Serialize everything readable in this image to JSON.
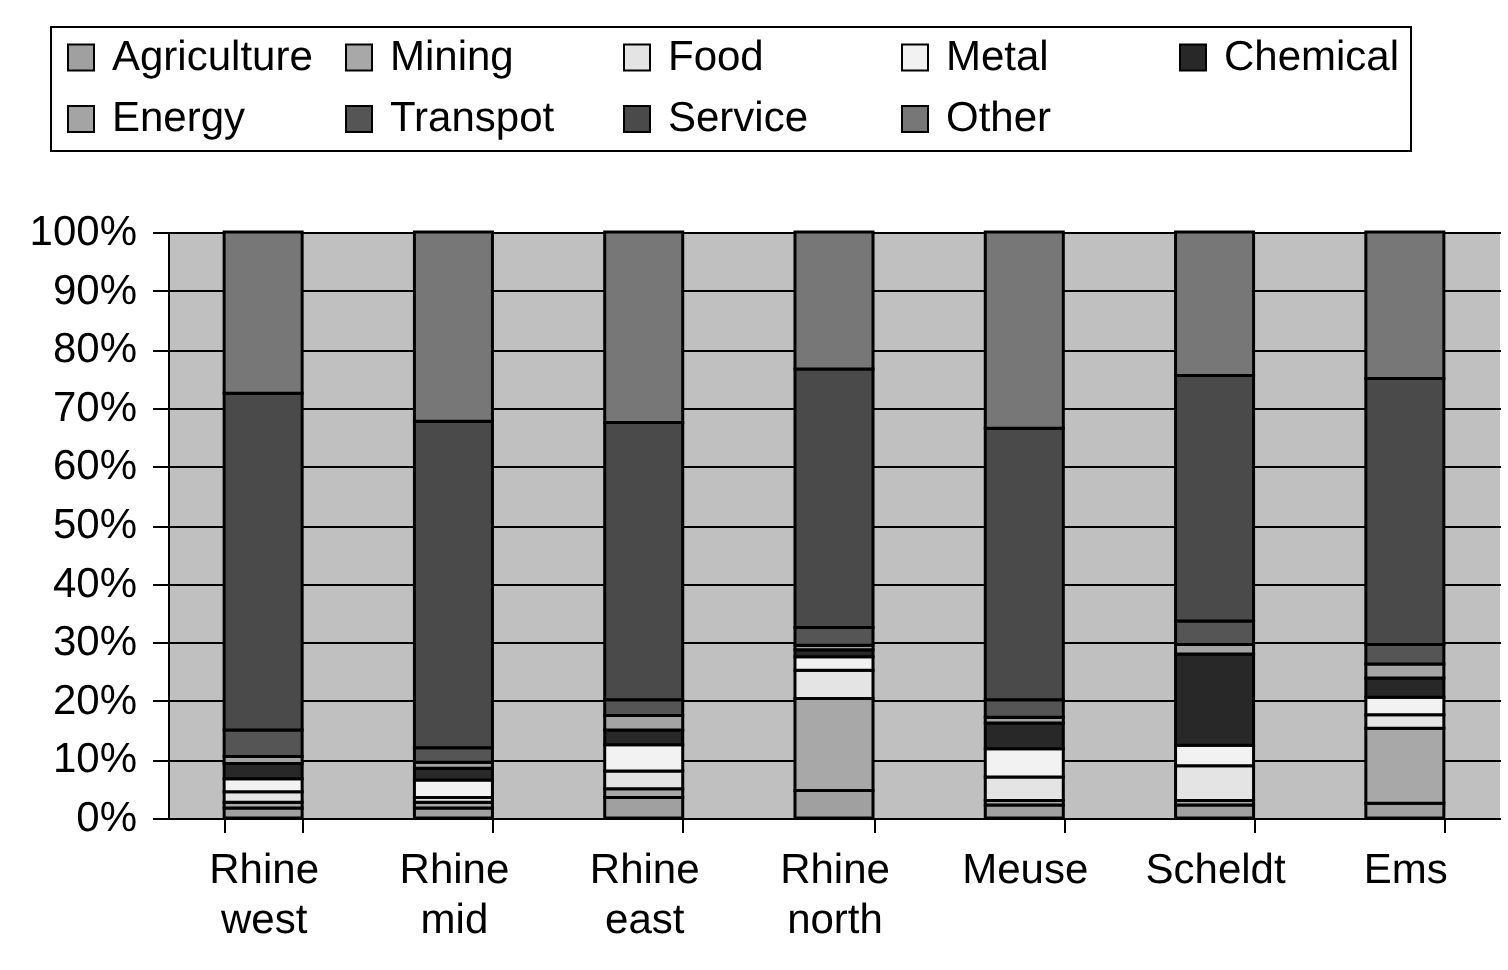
{
  "chart_data": {
    "type": "bar",
    "stacked": true,
    "categories": [
      "Rhine west",
      "Rhine mid",
      "Rhine east",
      "Rhine north",
      "Meuse",
      "Scheldt",
      "Ems"
    ],
    "series": [
      {
        "name": "Agriculture",
        "color": "#a0a0a0",
        "values": [
          1.7,
          1.7,
          3.5,
          4.7,
          2.2,
          2.2,
          2.5
        ]
      },
      {
        "name": "Mining",
        "color": "#a8a8a8",
        "values": [
          1.0,
          1.0,
          1.5,
          15.7,
          0.8,
          0.8,
          12.8
        ]
      },
      {
        "name": "Food",
        "color": "#e4e4e4",
        "values": [
          1.8,
          0.8,
          3.0,
          4.8,
          4.0,
          5.9,
          2.3
        ]
      },
      {
        "name": "Metal",
        "color": "#f2f2f2",
        "values": [
          2.2,
          3.0,
          4.5,
          2.3,
          4.8,
          3.5,
          3.0
        ]
      },
      {
        "name": "Chemical",
        "color": "#282828",
        "values": [
          2.6,
          2.0,
          2.5,
          1.2,
          4.4,
          15.6,
          3.3
        ]
      },
      {
        "name": "Energy",
        "color": "#a4a4a4",
        "values": [
          1.2,
          1.0,
          2.5,
          0.8,
          1.0,
          1.6,
          2.4
        ]
      },
      {
        "name": "Transpot",
        "color": "#555555",
        "values": [
          4.5,
          2.5,
          2.7,
          3.0,
          3.0,
          4.0,
          3.3
        ]
      },
      {
        "name": "Service",
        "color": "#4a4a4a",
        "values": [
          57.5,
          55.7,
          47.3,
          44.1,
          46.3,
          41.9,
          45.4
        ]
      },
      {
        "name": "Other",
        "color": "#777777",
        "values": [
          27.5,
          32.3,
          32.5,
          23.4,
          33.5,
          24.5,
          25.0
        ]
      }
    ],
    "ylim": [
      0,
      100
    ],
    "yticks": [
      {
        "value": 0,
        "label": "0%"
      },
      {
        "value": 10,
        "label": "10%"
      },
      {
        "value": 20,
        "label": "20%"
      },
      {
        "value": 30,
        "label": "30%"
      },
      {
        "value": 40,
        "label": "40%"
      },
      {
        "value": 50,
        "label": "50%"
      },
      {
        "value": 60,
        "label": "60%"
      },
      {
        "value": 70,
        "label": "70%"
      },
      {
        "value": 80,
        "label": "80%"
      },
      {
        "value": 90,
        "label": "90%"
      },
      {
        "value": 100,
        "label": "100%"
      }
    ],
    "grid": "y",
    "legend": "top"
  }
}
